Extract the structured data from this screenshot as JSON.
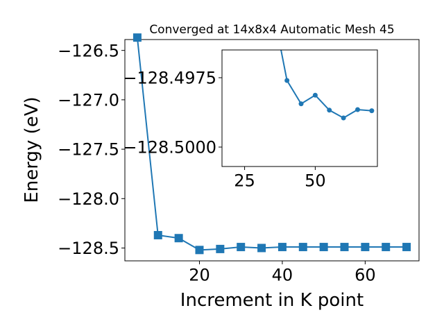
{
  "chart_data": [
    {
      "type": "line",
      "title": "Converged at 14x8x4 Automatic Mesh 45",
      "xlabel": "Increment in K point",
      "ylabel": "Energy (eV)",
      "xlim": [
        2,
        73
      ],
      "ylim": [
        -128.63,
        -126.39
      ],
      "x_ticks": [
        20,
        40,
        60
      ],
      "y_ticks": [
        -128.5,
        -128.0,
        -127.5,
        -127.0,
        -126.5
      ],
      "y_tick_labels": [
        "−128.5",
        "−128.0",
        "−127.5",
        "−127.0",
        "−126.5"
      ],
      "grid": false,
      "marker": "square",
      "color": "#1f77b4",
      "series": [
        {
          "x": [
            5,
            10,
            15,
            20,
            25,
            30,
            35,
            40,
            45,
            50,
            55,
            60,
            65,
            70
          ],
          "y": [
            -126.37,
            -128.37,
            -128.4,
            -128.52,
            -128.51,
            -128.49,
            -128.5,
            -128.49,
            -128.49,
            -128.49,
            -128.49,
            -128.49,
            -128.49,
            -128.49
          ]
        }
      ]
    },
    {
      "type": "line",
      "title": "",
      "xlabel": "",
      "ylabel": "",
      "inset": true,
      "xlim": [
        17,
        72
      ],
      "ylim": [
        -128.5007,
        -128.4965
      ],
      "x_ticks": [
        25,
        50
      ],
      "y_ticks": [
        -128.5,
        -128.4975
      ],
      "y_tick_labels": [
        "−128.5000",
        "−128.4975"
      ],
      "grid": false,
      "marker": "circle",
      "color": "#1f77b4",
      "series": [
        {
          "x": [
            35,
            40,
            45,
            50,
            55,
            60,
            65,
            70
          ],
          "y": [
            -128.495,
            -128.4976,
            -128.49844,
            -128.49813,
            -128.49867,
            -128.49895,
            -128.49865,
            -128.49869
          ]
        }
      ]
    }
  ]
}
